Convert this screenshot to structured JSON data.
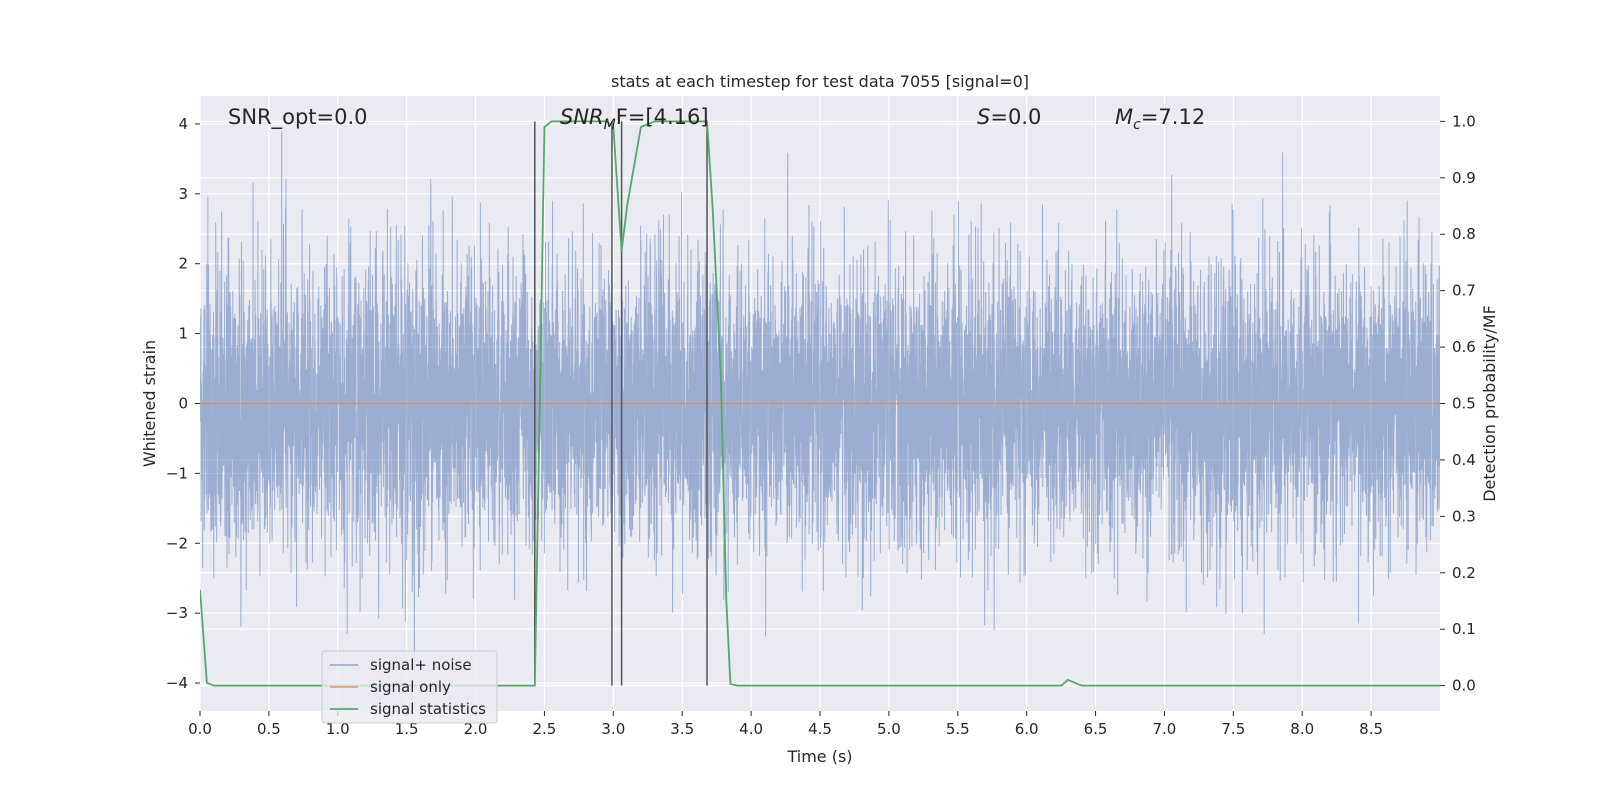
{
  "chart_data": {
    "type": "line",
    "title": "stats at each timestep for test data 7055 [signal=0]",
    "xlabel": "Time (s)",
    "ylabel_left": "Whitened strain",
    "ylabel_right": "Detection probability/MF",
    "xlim": [
      0.0,
      9.0
    ],
    "ylim_left": [
      -4.4,
      4.4
    ],
    "ylim_right": [
      -0.045,
      1.045
    ],
    "x_ticks": [
      0.0,
      0.5,
      1.0,
      1.5,
      2.0,
      2.5,
      3.0,
      3.5,
      4.0,
      4.5,
      5.0,
      5.5,
      6.0,
      6.5,
      7.0,
      7.5,
      8.0,
      8.5
    ],
    "x_tick_labels": [
      "0.0",
      "0.5",
      "1.0",
      "1.5",
      "2.0",
      "2.5",
      "3.0",
      "3.5",
      "4.0",
      "4.5",
      "5.0",
      "5.5",
      "6.0",
      "6.5",
      "7.0",
      "7.5",
      "8.0",
      "8.5"
    ],
    "y_left_ticks": [
      -4,
      -3,
      -2,
      -1,
      0,
      1,
      2,
      3,
      4
    ],
    "y_left_tick_labels": [
      "−4",
      "−3",
      "−2",
      "−1",
      "0",
      "1",
      "2",
      "3",
      "4"
    ],
    "y_right_ticks": [
      0.0,
      0.1,
      0.2,
      0.3,
      0.4,
      0.5,
      0.6,
      0.7,
      0.8,
      0.9,
      1.0
    ],
    "y_right_tick_labels": [
      "0.0",
      "0.1",
      "0.2",
      "0.3",
      "0.4",
      "0.5",
      "0.6",
      "0.7",
      "0.8",
      "0.9",
      "1.0"
    ],
    "grid": true,
    "legend_position": "lower-left",
    "annotations": {
      "snr_opt": "SNR_opt=0.0",
      "snr_mf_main": "SNR",
      "snr_mf_sub": "M",
      "snr_mf_rest": "F=[4.16]",
      "s_italic": "S",
      "s_rest": "=0.0",
      "mc_main": "M",
      "mc_sub": "c",
      "mc_rest": "=7.12"
    },
    "vertical_lines_x": [
      2.43,
      2.99,
      3.06,
      3.68
    ],
    "vertical_lines_range_right": [
      0.0,
      1.0
    ],
    "series": [
      {
        "name": "signal+ noise",
        "color": "#4c72b0",
        "axis": "left",
        "kind": "noise",
        "duration": 9.0,
        "sample_rate": 1000,
        "std": 1.0,
        "range": [
          -3.8,
          4.0
        ]
      },
      {
        "name": "signal only",
        "color": "#dd8452",
        "axis": "left",
        "x": [
          0.0,
          9.0
        ],
        "y": [
          0.0,
          0.0
        ]
      },
      {
        "name": "signal statistics",
        "color": "#55a868",
        "axis": "right",
        "x": [
          0.0,
          0.05,
          0.1,
          2.4,
          2.43,
          2.47,
          2.5,
          2.55,
          2.65,
          2.75,
          2.85,
          2.95,
          3.0,
          3.03,
          3.06,
          3.1,
          3.15,
          3.2,
          3.3,
          3.4,
          3.5,
          3.6,
          3.68,
          3.72,
          3.78,
          3.82,
          3.85,
          3.9,
          6.25,
          6.3,
          6.35,
          6.4,
          9.0
        ],
        "y": [
          0.17,
          0.005,
          0.0,
          0.0,
          0.0,
          0.55,
          0.99,
          1.0,
          1.0,
          1.0,
          1.0,
          1.0,
          0.99,
          0.88,
          0.77,
          0.85,
          0.92,
          0.99,
          1.0,
          1.0,
          1.0,
          1.0,
          1.0,
          0.85,
          0.55,
          0.15,
          0.003,
          0.0,
          0.0,
          0.01,
          0.005,
          0.0,
          0.0
        ]
      }
    ]
  }
}
